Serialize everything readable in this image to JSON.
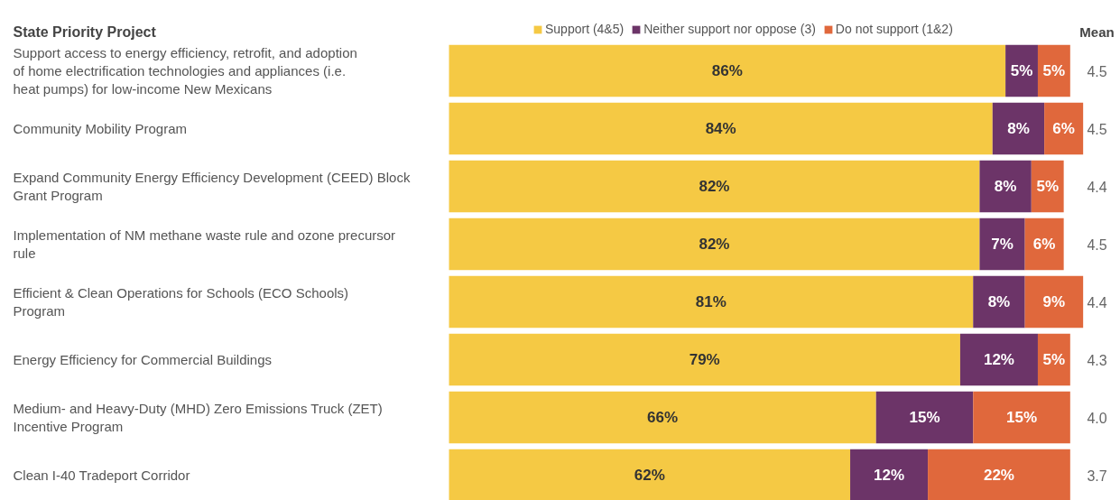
{
  "chart_data": {
    "type": "bar",
    "orientation": "horizontal",
    "stacked": true,
    "legend": "top",
    "ylabel": "State Priority Project",
    "categories": [
      "Support access to energy efficiency, retrofit, and adoption of home electrification technologies and appliances (i.e. heat pumps) for low-income New Mexicans",
      "Community Mobility Program",
      "Expand Community Energy Efficiency Development (CEED) Block Grant Program",
      "Implementation of NM methane waste rule and ozone precursor rule",
      "Efficient & Clean Operations for Schools (ECO Schools) Program",
      "Energy Efficiency for Commercial Buildings",
      "Medium- and Heavy-Duty (MHD) Zero Emissions Truck (ZET) Incentive Program",
      "Clean I-40 Tradeport Corridor"
    ],
    "series": [
      {
        "name": "Support (4&5)",
        "color": "#f5c944",
        "values": [
          86,
          84,
          82,
          82,
          81,
          79,
          66,
          62
        ],
        "value_labels": [
          "86%",
          "84%",
          "82%",
          "82%",
          "81%",
          "79%",
          "66%",
          "62%"
        ]
      },
      {
        "name": "Neither support nor oppose (3)",
        "color": "#6c3468",
        "values": [
          5,
          8,
          8,
          7,
          8,
          12,
          15,
          12
        ],
        "value_labels": [
          "5%",
          "8%",
          "8%",
          "7%",
          "8%",
          "12%",
          "15%",
          "12%"
        ]
      },
      {
        "name": "Do not support (1&2)",
        "color": "#e0683c",
        "values": [
          5,
          6,
          5,
          6,
          9,
          5,
          15,
          22
        ],
        "value_labels": [
          "5%",
          "6%",
          "5%",
          "6%",
          "9%",
          "5%",
          "15%",
          "22%"
        ]
      }
    ],
    "annotations": [
      "Mean",
      "4.5",
      "4.5",
      "4.4",
      "4.5",
      "4.4",
      "4.3",
      "4.0",
      "3.7"
    ]
  }
}
